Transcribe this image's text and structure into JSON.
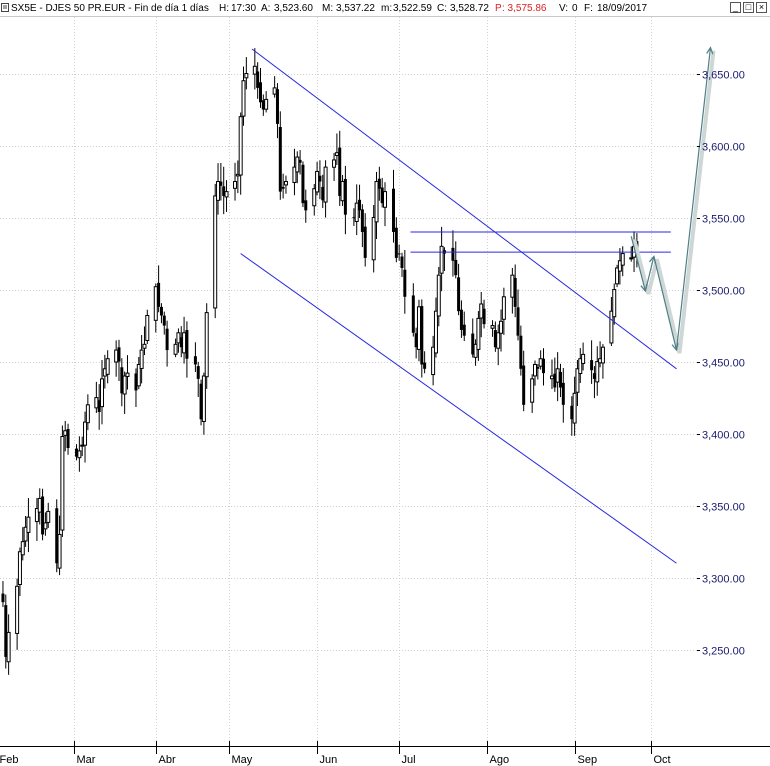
{
  "header": {
    "title": "SX5E - DJES 50 PR.EUR - Fin de día 1 días",
    "h_label": "H:",
    "h_value": "17:30",
    "a_label": "A:",
    "a_value": "3,523.60",
    "m_label": "M:",
    "m_value": "3,537.22",
    "mm_label": "m:",
    "mm_value": "3,522.59",
    "c_label": "C:",
    "c_value": "3,528.72",
    "p_label": "P",
    "p_value": ": 3,575.86",
    "v_label": "V:",
    "v_value": "0",
    "f_label": "F:",
    "f_value": "18/09/2017"
  },
  "window_buttons": [
    "_",
    "□",
    "×"
  ],
  "colors": {
    "candle": "#000000",
    "channel": "#2a2ae0",
    "projection": "#4d7f86",
    "axis_text": "#1a1a6e",
    "grid": "#d2d2d2",
    "p_value": "#e02020"
  },
  "chart_data": {
    "type": "candlestick",
    "title": "SX5E - DJES 50 PR.EUR",
    "ylim": [
      3205,
      3715
    ],
    "y_ticks": [
      3250,
      3300,
      3350,
      3400,
      3450,
      3500,
      3550,
      3600,
      3650
    ],
    "y_tick_labels": [
      "3,250.00",
      "3,300.00",
      "3,350.00",
      "3,400.00",
      "3,450.00",
      "3,500.00",
      "3,550.00",
      "3,600.00",
      "3,650.00"
    ],
    "x_ticks": [
      "Feb",
      "Mar",
      "Abr",
      "May",
      "Jun",
      "Jul",
      "Ago",
      "Sep",
      "Oct"
    ],
    "x_tick_days": [
      0,
      27,
      56,
      82,
      113,
      142,
      173,
      204,
      231
    ],
    "x_range_days": [
      2,
      257
    ],
    "grid": "vertical-and-horizontal",
    "start_day": 2,
    "closes": [
      3283,
      3245,
      3262,
      3294,
      3318,
      3325,
      3335,
      3342,
      3348,
      3355,
      3330,
      3338,
      3346,
      3310,
      3330,
      3398,
      3402,
      3390,
      3384,
      3388,
      3392,
      3408,
      3420,
      3425,
      3415,
      3438,
      3445,
      3452,
      3458,
      3450,
      3428,
      3440,
      3442,
      3430,
      3448,
      3458,
      3462,
      3482,
      3502,
      3488,
      3482,
      3475,
      3458,
      3462,
      3470,
      3460,
      3470,
      3452,
      3448,
      3438,
      3410,
      3440,
      3484,
      3565,
      3575,
      3572,
      3565,
      3568,
      3575,
      3580,
      3620,
      3645,
      3650,
      3655,
      3640,
      3630,
      3625,
      3632,
      3640,
      3615,
      3568,
      3570,
      3575,
      3585,
      3592,
      3588,
      3560,
      3555,
      3570,
      3582,
      3575,
      3562,
      3585,
      3590,
      3595,
      3565,
      3575,
      3552,
      3550,
      3560,
      3555,
      3540,
      3522,
      3550,
      3575,
      3570,
      3560,
      3568,
      3540,
      3522,
      3525,
      3515,
      3495,
      3470,
      3460,
      3488,
      3448,
      3445,
      3460,
      3485,
      3510,
      3530,
      3525,
      3520,
      3510,
      3485,
      3472,
      3468,
      3455,
      3462,
      3480,
      3490,
      3476,
      3475,
      3460,
      3470,
      3478,
      3495,
      3510,
      3488,
      3468,
      3445,
      3420,
      3438,
      3448,
      3445,
      3452,
      3442,
      3440,
      3432,
      3445,
      3432,
      3420,
      3410,
      3428,
      3445,
      3452,
      3455,
      3444,
      3438,
      3450,
      3452,
      3460,
      3485,
      3500,
      3515,
      3520,
      3525,
      3522,
      3530,
      3528
    ],
    "ohlc_note": "approximate daily candles (trading days only)",
    "trendlines": [
      {
        "name": "upper-channel",
        "from": {
          "day": 90,
          "value": 3667
        },
        "to": {
          "day": 240,
          "value": 3445
        }
      },
      {
        "name": "lower-channel",
        "from": {
          "day": 86,
          "value": 3525
        },
        "to": {
          "day": 240,
          "value": 3310
        }
      },
      {
        "name": "resistance-1",
        "from": {
          "day": 146,
          "value": 3540
        },
        "to": {
          "day": 238,
          "value": 3540
        }
      },
      {
        "name": "resistance-2",
        "from": {
          "day": 146,
          "value": 3526
        },
        "to": {
          "day": 238,
          "value": 3526
        }
      }
    ],
    "projection_path": [
      {
        "day": 224,
        "value": 3537
      },
      {
        "day": 229,
        "value": 3499
      },
      {
        "day": 232,
        "value": 3523
      },
      {
        "day": 240,
        "value": 3458
      },
      {
        "day": 252,
        "value": 3668
      }
    ]
  }
}
